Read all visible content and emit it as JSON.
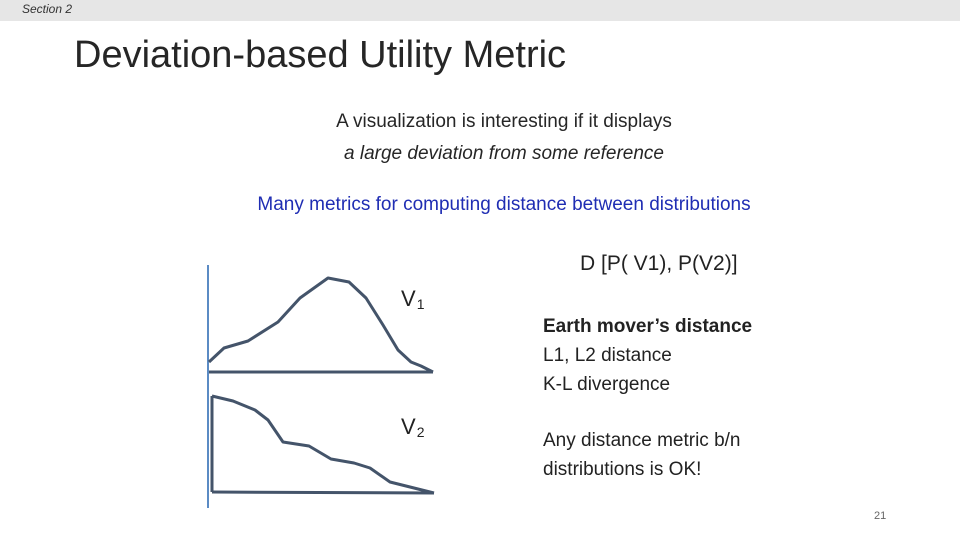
{
  "header": {
    "section_label": "Section 2"
  },
  "slide": {
    "title": "Deviation-based Utility Metric",
    "intro_line1": "A visualization is interesting if it displays",
    "intro_line2": "a large deviation from some reference",
    "metrics_caption": "Many metrics for computing distance between distributions",
    "formula": "D [P( V1), P(V2)]",
    "v1_label": "V",
    "v1_sub": "1",
    "v2_label": "V",
    "v2_sub": "2",
    "metrics": {
      "emd": "Earth mover’s distance",
      "l1l2": "L1, L2 distance",
      "kl": "K-L divergence"
    },
    "ok_note_line1": "Any distance metric b/n",
    "ok_note_line2": "distributions is OK!",
    "page_number": "21"
  },
  "colors": {
    "curve": "#44546a",
    "axis_line": "#5b8bc4",
    "caption_blue": "#1f2db3",
    "topbar": "#e6e6e6"
  }
}
